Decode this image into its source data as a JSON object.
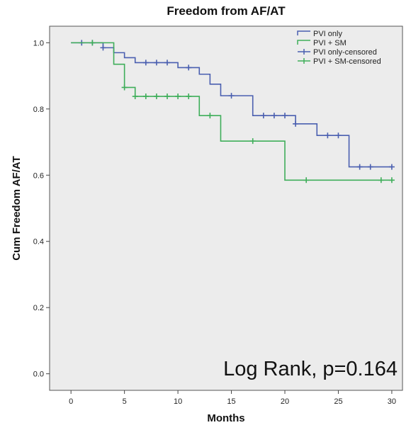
{
  "chart_data": {
    "type": "line",
    "subtype": "kaplan-meier-step",
    "title": "Freedom from AF/AT",
    "xlabel": "Months",
    "ylabel": "Cum Freedom AF/AT",
    "xlim": [
      -2,
      31
    ],
    "ylim": [
      -0.05,
      1.05
    ],
    "xticks": [
      0,
      5,
      10,
      15,
      20,
      25,
      30
    ],
    "xtick_labels": [
      "0",
      "5",
      "10",
      "15",
      "20",
      "25",
      "30"
    ],
    "yticks": [
      0.0,
      0.2,
      0.4,
      0.6,
      0.8,
      1.0
    ],
    "ytick_labels": [
      "0.0",
      "0.2",
      "0.4",
      "0.6",
      "0.8",
      "1.0"
    ],
    "grid": false,
    "legend_position": "top-right",
    "background_color": "#ececec",
    "annotation": "Log Rank, p=0.164",
    "legend": [
      {
        "label": "PVI only",
        "color": "#4a5fb0",
        "marker": "step"
      },
      {
        "label": "PVI + SM",
        "color": "#3fae5a",
        "marker": "step"
      },
      {
        "label": "PVI only-censored",
        "color": "#4a5fb0",
        "marker": "cross"
      },
      {
        "label": "PVI + SM-censored",
        "color": "#3fae5a",
        "marker": "cross"
      }
    ],
    "series": [
      {
        "name": "PVI only",
        "color": "#4a5fb0",
        "steps": [
          {
            "x": 0,
            "y": 1.0
          },
          {
            "x": 3,
            "y": 0.985
          },
          {
            "x": 4,
            "y": 0.97
          },
          {
            "x": 5,
            "y": 0.955
          },
          {
            "x": 6,
            "y": 0.94
          },
          {
            "x": 10,
            "y": 0.925
          },
          {
            "x": 12,
            "y": 0.905
          },
          {
            "x": 13,
            "y": 0.875
          },
          {
            "x": 14,
            "y": 0.84
          },
          {
            "x": 17,
            "y": 0.78
          },
          {
            "x": 21,
            "y": 0.755
          },
          {
            "x": 23,
            "y": 0.72
          },
          {
            "x": 26,
            "y": 0.625
          }
        ],
        "end_x": 30,
        "censored": [
          {
            "x": 1,
            "y": 1.0
          },
          {
            "x": 2,
            "y": 1.0
          },
          {
            "x": 3,
            "y": 0.985
          },
          {
            "x": 7,
            "y": 0.94
          },
          {
            "x": 8,
            "y": 0.94
          },
          {
            "x": 9,
            "y": 0.94
          },
          {
            "x": 11,
            "y": 0.925
          },
          {
            "x": 15,
            "y": 0.84
          },
          {
            "x": 18,
            "y": 0.78
          },
          {
            "x": 19,
            "y": 0.78
          },
          {
            "x": 20,
            "y": 0.78
          },
          {
            "x": 21,
            "y": 0.755
          },
          {
            "x": 24,
            "y": 0.72
          },
          {
            "x": 25,
            "y": 0.72
          },
          {
            "x": 27,
            "y": 0.625
          },
          {
            "x": 28,
            "y": 0.625
          },
          {
            "x": 30,
            "y": 0.625
          }
        ]
      },
      {
        "name": "PVI + SM",
        "color": "#3fae5a",
        "steps": [
          {
            "x": 0,
            "y": 1.0
          },
          {
            "x": 4,
            "y": 0.935
          },
          {
            "x": 5,
            "y": 0.865
          },
          {
            "x": 6,
            "y": 0.838
          },
          {
            "x": 12,
            "y": 0.78
          },
          {
            "x": 14,
            "y": 0.703
          },
          {
            "x": 20,
            "y": 0.585
          }
        ],
        "end_x": 30,
        "censored": [
          {
            "x": 2,
            "y": 1.0
          },
          {
            "x": 5,
            "y": 0.865
          },
          {
            "x": 6,
            "y": 0.838
          },
          {
            "x": 7,
            "y": 0.838
          },
          {
            "x": 8,
            "y": 0.838
          },
          {
            "x": 9,
            "y": 0.838
          },
          {
            "x": 10,
            "y": 0.838
          },
          {
            "x": 11,
            "y": 0.838
          },
          {
            "x": 13,
            "y": 0.78
          },
          {
            "x": 17,
            "y": 0.703
          },
          {
            "x": 22,
            "y": 0.585
          },
          {
            "x": 29,
            "y": 0.585
          },
          {
            "x": 30,
            "y": 0.585
          }
        ]
      }
    ]
  }
}
